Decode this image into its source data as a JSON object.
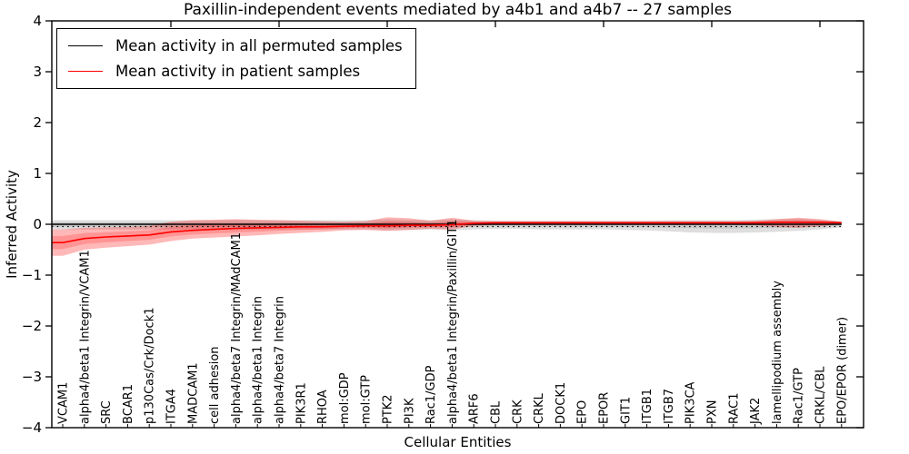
{
  "title": "Paxillin-independent events mediated by a4b1 and a4b7 -- 27 samples",
  "legend": {
    "items": [
      {
        "label": "Mean activity in all permuted samples",
        "color": "#000000"
      },
      {
        "label": "Mean activity in patient samples",
        "color": "#ff0000"
      }
    ]
  },
  "chart_data": {
    "type": "line",
    "title": "Paxillin-independent events mediated by a4b1 and a4b7 -- 27 samples",
    "xlabel": "Cellular Entities",
    "ylabel": "Inferred Activity",
    "ylim": [
      -4,
      4
    ],
    "ytick_values": [
      4,
      3,
      2,
      1,
      0,
      -1,
      -2,
      -3,
      -4
    ],
    "ytick_labels": [
      "4",
      "3",
      "2",
      "1",
      "0",
      "−1",
      "−2",
      "−3",
      "−4"
    ],
    "top_tick_categories": [
      5,
      10,
      15,
      20,
      25,
      30,
      35
    ],
    "grid": false,
    "legend_position": "upper left",
    "categories": [
      "VCAM1",
      "alpha4/beta1 Integrin/VCAM1",
      "SRC",
      "BCAR1",
      "p130Cas/Crk/Dock1",
      "ITGA4",
      "MADCAM1",
      "cell adhesion",
      "alpha4/beta7 Integrin/MAdCAM1",
      "alpha4/beta1 Integrin",
      "alpha4/beta7 Integrin",
      "PIK3R1",
      "RHOA",
      "mol:GDP",
      "mol:GTP",
      "PTK2",
      "PI3K",
      "Rac1/GDP",
      "alpha4/beta1 Integrin/Paxillin/GIT1",
      "ARF6",
      "CBL",
      "CRK",
      "CRKL",
      "DOCK1",
      "EPO",
      "EPOR",
      "GIT1",
      "ITGB1",
      "ITGB7",
      "PIK3CA",
      "PXN",
      "RAC1",
      "JAK2",
      "lamellipodium assembly",
      "Rac1/GTP",
      "CRKL/CBL",
      "EPO/EPOR (dimer)"
    ],
    "series": [
      {
        "name": "Mean activity in all permuted samples",
        "color": "#000000",
        "band_color": "rgba(0,0,0,0.13)",
        "values": [
          0,
          0,
          0,
          0,
          0,
          0,
          0,
          0,
          0,
          0,
          0,
          0,
          0,
          0,
          0,
          0,
          0,
          0,
          0,
          0,
          0,
          0,
          0,
          0,
          0,
          0,
          0,
          0,
          0,
          0,
          0,
          0,
          0,
          0,
          0,
          0,
          0
        ],
        "band_upper": [
          0.08,
          0.08,
          0.08,
          0.08,
          0.08,
          0.08,
          0.08,
          0.08,
          0.09,
          0.08,
          0.08,
          0.08,
          0.08,
          0.08,
          0.08,
          0.1,
          0.09,
          0.08,
          0.1,
          0.08,
          0.07,
          0.07,
          0.07,
          0.07,
          0.07,
          0.07,
          0.07,
          0.07,
          0.08,
          0.08,
          0.08,
          0.08,
          0.09,
          0.1,
          0.11,
          0.09,
          0.06
        ],
        "band_lower": [
          -0.1,
          -0.1,
          -0.1,
          -0.1,
          -0.1,
          -0.1,
          -0.1,
          -0.1,
          -0.11,
          -0.1,
          -0.1,
          -0.1,
          -0.1,
          -0.1,
          -0.1,
          -0.12,
          -0.11,
          -0.1,
          -0.12,
          -0.1,
          -0.09,
          -0.09,
          -0.1,
          -0.1,
          -0.1,
          -0.1,
          -0.11,
          -0.12,
          -0.14,
          -0.16,
          -0.17,
          -0.17,
          -0.16,
          -0.15,
          -0.13,
          -0.1,
          -0.06
        ]
      },
      {
        "name": "Mean activity in patient samples",
        "color": "#ff0000",
        "band_color": "rgba(255,0,0,0.28)",
        "values": [
          -0.36,
          -0.28,
          -0.25,
          -0.23,
          -0.21,
          -0.15,
          -0.12,
          -0.1,
          -0.08,
          -0.07,
          -0.06,
          -0.05,
          -0.05,
          -0.04,
          -0.03,
          -0.03,
          -0.02,
          -0.02,
          -0.01,
          0.02,
          0.03,
          0.03,
          0.03,
          0.03,
          0.03,
          0.03,
          0.03,
          0.03,
          0.03,
          0.03,
          0.03,
          0.03,
          0.03,
          0.04,
          0.04,
          0.04,
          0.03
        ],
        "band_upper": [
          -0.1,
          -0.07,
          -0.06,
          -0.05,
          -0.03,
          0.05,
          0.08,
          0.09,
          0.1,
          0.09,
          0.08,
          0.07,
          0.06,
          0.05,
          0.06,
          0.14,
          0.12,
          0.07,
          0.13,
          0.07,
          0.06,
          0.06,
          0.06,
          0.06,
          0.06,
          0.06,
          0.06,
          0.06,
          0.06,
          0.06,
          0.06,
          0.06,
          0.07,
          0.1,
          0.13,
          0.1,
          0.05
        ],
        "band_lower": [
          -0.62,
          -0.5,
          -0.46,
          -0.43,
          -0.4,
          -0.33,
          -0.28,
          -0.26,
          -0.24,
          -0.22,
          -0.19,
          -0.17,
          -0.15,
          -0.12,
          -0.11,
          -0.13,
          -0.11,
          -0.09,
          -0.1,
          -0.03,
          -0.01,
          -0.01,
          -0.01,
          -0.01,
          -0.01,
          -0.01,
          -0.01,
          -0.01,
          -0.01,
          -0.01,
          -0.01,
          -0.01,
          -0.02,
          -0.05,
          -0.07,
          -0.04,
          0.0
        ]
      }
    ],
    "reference_dotted_line": {
      "y": -0.045,
      "color": "#000000",
      "style": "dotted"
    }
  }
}
